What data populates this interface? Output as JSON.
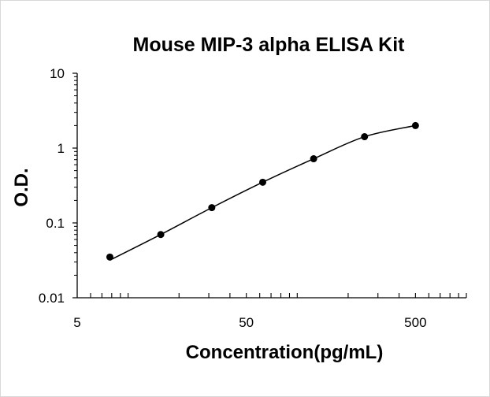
{
  "chart_data": {
    "type": "scatter",
    "title": "Mouse MIP-3 alpha ELISA Kit",
    "xlabel": "Concentration(pg/mL)",
    "ylabel": "O.D.",
    "x_scale": "log",
    "y_scale": "log",
    "xlim": [
      5,
      1000
    ],
    "ylim": [
      0.01,
      10
    ],
    "x_ticks": [
      5,
      50,
      500
    ],
    "y_ticks": [
      0.01,
      0.1,
      1,
      10
    ],
    "x_tick_labels": [
      "5",
      "50",
      "500"
    ],
    "y_tick_labels": [
      "0.01",
      "0.1",
      "1",
      "10"
    ],
    "series": [
      {
        "x": [
          7.8,
          15.6,
          31.25,
          62.5,
          125,
          250,
          500
        ],
        "y": [
          0.035,
          0.07,
          0.16,
          0.35,
          0.72,
          1.42,
          2.0
        ],
        "fit_line": true
      }
    ],
    "legend": "none",
    "grid": false,
    "colors": {
      "marker": "#000000",
      "line": "#000000",
      "axis": "#000000"
    }
  }
}
